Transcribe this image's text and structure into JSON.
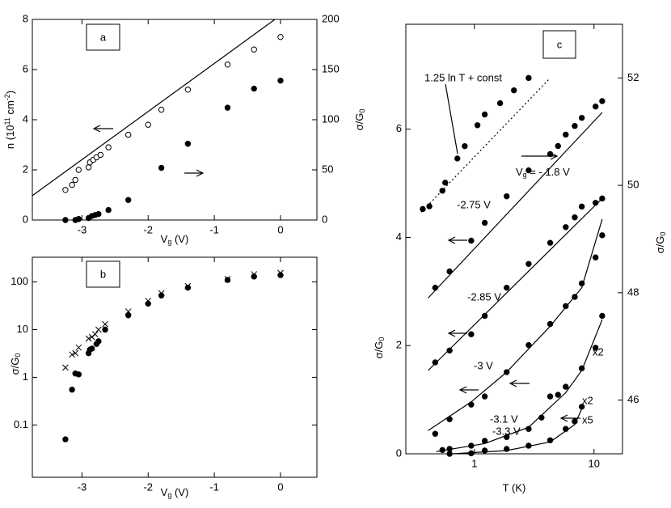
{
  "chart_data": [
    {
      "type": "scatter",
      "label": "a",
      "xlabel": "Vg (V)",
      "ylabel": "n (1011 cm-2)",
      "y2label": "σ/G0",
      "xlim": [
        -3.75,
        0.55
      ],
      "xticks": [
        -3,
        -2,
        -1,
        0
      ],
      "ylim": [
        0,
        8
      ],
      "yticks": [
        0,
        2,
        4,
        6,
        8
      ],
      "y2lim": [
        0,
        200
      ],
      "y2ticks": [
        0,
        50,
        100,
        150,
        200
      ],
      "series": [
        {
          "marker": "open",
          "x": [
            -3.25,
            -3.15,
            -3.1,
            -3.05,
            -2.9,
            -2.88,
            -2.83,
            -2.78,
            -2.72,
            -2.6,
            -2.3,
            -2.0,
            -1.8,
            -1.4,
            -0.8,
            -0.4,
            0
          ],
          "values": [
            1.2,
            1.4,
            1.6,
            2.0,
            2.1,
            2.3,
            2.4,
            2.5,
            2.6,
            2.9,
            3.4,
            3.8,
            4.4,
            5.2,
            6.2,
            6.8,
            7.3
          ],
          "fit": {
            "x": [
              -3.75,
              -0.085
            ],
            "values": [
              0.97,
              8
            ]
          }
        },
        {
          "marker": "filled",
          "axis": "y2",
          "x": [
            -3.25,
            -3.1,
            -3.05,
            -2.9,
            -2.85,
            -2.8,
            -2.75,
            -2.6,
            -2.3,
            -1.8,
            -1.4,
            -0.8,
            -0.4,
            0
          ],
          "values": [
            0,
            0,
            1,
            2,
            4,
            5,
            6,
            10,
            20,
            52,
            76,
            112,
            131,
            139
          ]
        }
      ]
    },
    {
      "type": "scatter",
      "label": "b",
      "xlabel": "Vg (V)",
      "ylabel": "σ/G0",
      "ylog": true,
      "xlim": [
        -3.75,
        0.55
      ],
      "xticks": [
        -3,
        -2,
        -1,
        0
      ],
      "ylim": [
        0.008,
        330
      ],
      "yticks": [
        0.1,
        1,
        10,
        100
      ],
      "series": [
        {
          "marker": "filled",
          "x": [
            -3.25,
            -3.15,
            -3.1,
            -3.05,
            -2.9,
            -2.88,
            -2.85,
            -2.78,
            -2.75,
            -2.65,
            -2.3,
            -2.0,
            -1.8,
            -1.4,
            -0.8,
            -0.4,
            0
          ],
          "values": [
            0.05,
            0.55,
            1.2,
            1.15,
            3.2,
            3.8,
            4,
            5,
            5.7,
            10,
            20,
            35,
            52,
            76,
            110,
            130,
            139
          ]
        },
        {
          "marker": "cross",
          "x": [
            -3.25,
            -3.15,
            -3.1,
            -3.05,
            -2.9,
            -2.85,
            -2.8,
            -2.75,
            -2.65,
            -2.3,
            -2.0,
            -1.8,
            -1.4,
            -0.8,
            -0.4,
            0
          ],
          "values": [
            1.6,
            3,
            3.2,
            4.2,
            6.5,
            7,
            8,
            10,
            13,
            24,
            40,
            58,
            82,
            115,
            145,
            155
          ]
        }
      ]
    },
    {
      "type": "scatter",
      "label": "c",
      "xlabel": "T (K)",
      "ylabel": "σ/G0",
      "y2label": "σ/G0",
      "xlog": true,
      "xlim": [
        0.267,
        17.3
      ],
      "xticks": [
        1,
        10
      ],
      "ylim": [
        0,
        7.94
      ],
      "yticks": [
        0,
        2,
        4,
        6
      ],
      "y2lim": [
        45,
        53
      ],
      "y2ticks": [
        46,
        48,
        50,
        52
      ],
      "annotations": [
        "1.25 ln T + const",
        "x2",
        "x2",
        "x5"
      ],
      "series": [
        {
          "name": "Vg = - 1.8 V",
          "marker": "filled",
          "axis": "y2",
          "x": [
            0.37,
            0.42,
            0.54,
            0.57,
            0.72,
            0.83,
            1.06,
            1.22,
            1.64,
            2.14,
            2.84
          ],
          "values": [
            49.56,
            49.61,
            49.9,
            50.05,
            50.5,
            50.73,
            51.12,
            51.32,
            51.53,
            51.77,
            52.0
          ],
          "fit": {
            "x": [
              0.36,
              4.3
            ],
            "values": [
              49.5,
              52.0
            ],
            "dash": true
          }
        },
        {
          "name": "-2.75 V",
          "marker": "filled",
          "x": [
            0.47,
            0.62,
            0.94,
            1.22,
            1.86,
            2.84,
            4.3,
            5.0,
            5.8,
            6.9,
            7.9,
            10.3,
            11.7
          ],
          "values": [
            3.07,
            3.37,
            3.94,
            4.27,
            4.76,
            5.24,
            5.54,
            5.69,
            5.9,
            6.06,
            6.21,
            6.42,
            6.52
          ],
          "fit": {
            "x": [
              0.41,
              11.7
            ],
            "values": [
              2.88,
              6.31
            ]
          }
        },
        {
          "name": "-2.85 V",
          "marker": "filled",
          "x": [
            0.47,
            0.62,
            0.94,
            1.22,
            1.86,
            2.84,
            4.3,
            5.8,
            6.9,
            7.9,
            10.3,
            11.7
          ],
          "values": [
            1.69,
            1.91,
            2.21,
            2.55,
            3.07,
            3.51,
            3.9,
            4.19,
            4.37,
            4.57,
            4.64,
            4.72
          ],
          "fit": {
            "x": [
              0.41,
              11.7
            ],
            "values": [
              1.54,
              4.72
            ]
          }
        },
        {
          "name": "-3 V",
          "marker": "filled",
          "x": [
            0.47,
            0.62,
            0.94,
            1.22,
            1.86,
            2.84,
            4.3,
            5.8,
            6.9,
            7.9,
            10.3,
            11.7
          ],
          "values": [
            0.37,
            0.64,
            0.91,
            1.06,
            1.51,
            2.01,
            2.4,
            2.73,
            2.9,
            3.15,
            3.63,
            4.04
          ],
          "fit": {
            "x": [
              0.41,
              0.94,
              1.86,
              4.3,
              7.9,
              11.7
            ],
            "values": [
              0.43,
              0.96,
              1.51,
              2.36,
              3.07,
              4.34
            ]
          }
        },
        {
          "name": "-3.1 V",
          "marker": "filled",
          "x": [
            0.54,
            0.62,
            0.94,
            1.22,
            1.86,
            2.84,
            3.64,
            4.3,
            5.0,
            5.8,
            7.9,
            10.3,
            11.7
          ],
          "values": [
            0.07,
            0.09,
            0.15,
            0.24,
            0.31,
            0.46,
            0.67,
            1.06,
            1.09,
            1.24,
            1.58,
            1.96,
            2.55
          ],
          "fit": {
            "x": [
              0.48,
              1.22,
              2.84,
              5.8,
              7.9,
              11.7
            ],
            "values": [
              0.04,
              0.19,
              0.49,
              1.13,
              1.54,
              2.48
            ]
          }
        },
        {
          "name": "-3.3 V",
          "marker": "filled",
          "x": [
            0.62,
            0.94,
            1.22,
            1.86,
            2.84,
            4.3,
            5.8,
            6.9,
            7.9
          ],
          "values": [
            0,
            0.01,
            0.06,
            0.09,
            0.15,
            0.25,
            0.46,
            0.6,
            0.87
          ],
          "fit": {
            "x": [
              0.66,
              1.86,
              4.3,
              6.9,
              8.2
            ],
            "values": [
              0,
              0.06,
              0.22,
              0.54,
              0.91
            ]
          }
        }
      ]
    }
  ]
}
